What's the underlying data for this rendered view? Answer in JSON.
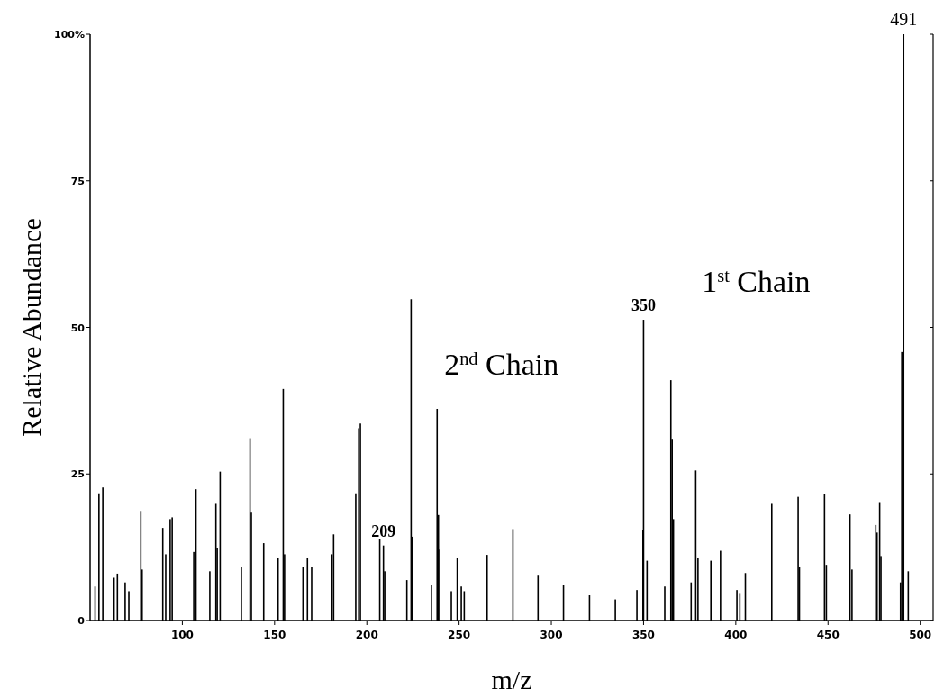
{
  "chart_data": {
    "type": "bar",
    "xlabel": "m/z",
    "ylabel": "Relative Abundance",
    "xlim": [
      50,
      507
    ],
    "xticks": [
      100,
      150,
      200,
      250,
      300,
      350,
      400,
      450,
      500
    ],
    "ylim": [
      0,
      100
    ],
    "yticks": [
      0,
      25,
      50,
      75,
      {
        "value": 100,
        "label": "100%"
      }
    ],
    "grid": false,
    "series": [
      {
        "color": "#000000",
        "x": [
          52.7,
          54.8,
          56.9,
          63,
          64.8,
          69,
          71,
          77.5,
          78.2,
          89.4,
          91,
          93.4,
          94.5,
          106.2,
          107.4,
          114.9,
          118.2,
          118.9,
          120.5,
          132,
          136.7,
          137.4,
          144.1,
          151.9,
          154.7,
          155.4,
          165.4,
          167.8,
          170.1,
          181.1,
          182,
          194,
          195.6,
          196.5,
          207,
          209,
          209.7,
          221.7,
          224,
          224.7,
          235,
          238.1,
          238.8,
          239.5,
          245.8,
          249,
          251.2,
          252.8,
          265.2,
          279.2,
          292.8,
          306.6,
          320.7,
          334.7,
          346.4,
          349.7,
          350,
          351.9,
          361.5,
          364.8,
          365.5,
          366.2,
          375.8,
          378.3,
          379.5,
          386.5,
          391.7,
          400.6,
          402.2,
          405.2,
          419.5,
          433.8,
          434.5,
          448.1,
          449.1,
          461.9,
          463,
          475.9,
          476.6,
          478,
          478.7,
          489.3,
          490,
          491,
          493.5
        ],
        "values": [
          5.8,
          21.7,
          22.7,
          7.3,
          8,
          6.5,
          5,
          18.7,
          8.7,
          15.8,
          11.3,
          17.3,
          17.6,
          11.7,
          22.4,
          8.4,
          19.9,
          12.4,
          25.4,
          9.1,
          31.1,
          18.4,
          13.2,
          10.6,
          39.5,
          11.3,
          9.1,
          10.6,
          9.1,
          11.3,
          14.7,
          21.7,
          32.8,
          33.6,
          13.9,
          12.8,
          8.4,
          6.9,
          54.8,
          14.3,
          6.1,
          36.1,
          18,
          12.1,
          5,
          10.6,
          5.8,
          5,
          11.2,
          15.6,
          7.8,
          6,
          4.3,
          3.6,
          5.2,
          15.4,
          51.3,
          10.2,
          5.8,
          41,
          31,
          17.3,
          6.5,
          25.6,
          10.6,
          10.2,
          11.9,
          5.2,
          4.7,
          8.1,
          19.9,
          21.1,
          9.1,
          21.6,
          9.5,
          18.1,
          8.7,
          16.3,
          15,
          20.2,
          11,
          6.5,
          45.8,
          100,
          8.4
        ]
      }
    ],
    "annotations": [
      {
        "text": "209",
        "x": 209,
        "y": 12.8
      },
      {
        "text": "350",
        "x": 350,
        "y": 51.3
      },
      {
        "text": "491",
        "x": 491,
        "y": 100
      },
      "2$^{nd}$ Chain",
      "1$^{st}$ Chain"
    ]
  }
}
